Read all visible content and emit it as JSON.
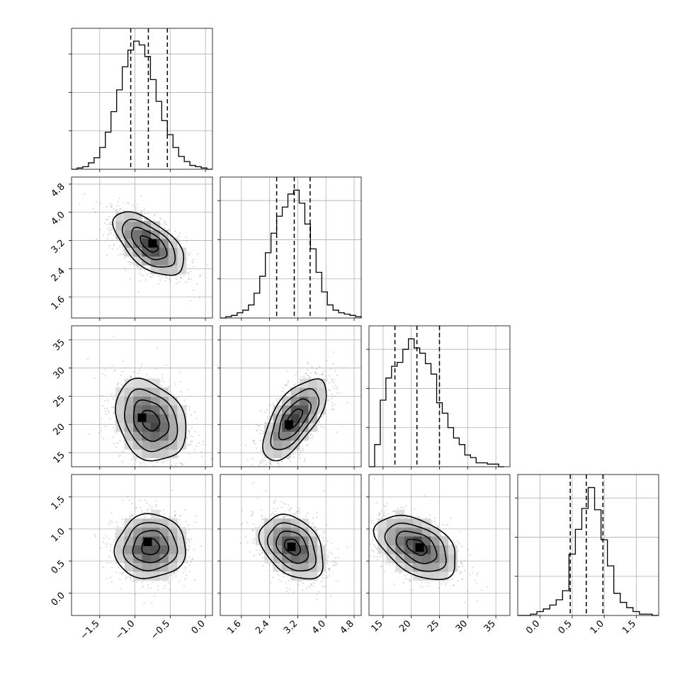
{
  "chart_data": {
    "type": "corner",
    "grid": true,
    "variables": [
      {
        "range": [
          -1.9,
          0.1
        ],
        "ticks": [
          -1.5,
          -1.0,
          -0.5,
          0.0
        ],
        "tick_labels": [
          "−1.5",
          "−1.0",
          "−0.5",
          "0.0"
        ],
        "quantiles": [
          -1.06,
          -0.81,
          -0.54
        ],
        "histogram": {
          "edges_start": -1.9,
          "edges_end": 0.1,
          "counts": [
            0,
            1,
            2,
            5,
            9,
            17,
            29,
            45,
            62,
            80,
            93,
            100,
            97,
            88,
            70,
            53,
            38,
            27,
            17,
            10,
            6,
            3,
            2,
            1,
            0
          ],
          "ymax": 110
        }
      },
      {
        "range": [
          1.0,
          5.0
        ],
        "ticks": [
          1.6,
          2.4,
          3.2,
          4.0,
          4.8
        ],
        "tick_labels": [
          "1.6",
          "2.4",
          "3.2",
          "4.0",
          "4.8"
        ],
        "quantiles": [
          2.6,
          3.1,
          3.55
        ],
        "histogram": {
          "edges_start": 1.0,
          "edges_end": 5.0,
          "counts": [
            0,
            1,
            2,
            4,
            6,
            10,
            19,
            32,
            50,
            65,
            78,
            85,
            95,
            98,
            88,
            72,
            53,
            35,
            20,
            10,
            6,
            4,
            3,
            2,
            1
          ],
          "ymax": 108
        }
      },
      {
        "range": [
          12.5,
          37.5
        ],
        "ticks": [
          15,
          20,
          25,
          30,
          35
        ],
        "tick_labels": [
          "15",
          "20",
          "25",
          "30",
          "35"
        ],
        "quantiles": [
          17.1,
          21.0,
          25.0
        ],
        "histogram": {
          "edges_start": 12.5,
          "edges_end": 36.5,
          "counts": [
            0,
            17,
            51,
            68,
            77,
            80,
            90,
            98,
            91,
            87,
            79,
            71,
            49,
            41,
            30,
            22,
            17,
            9,
            7,
            3,
            3,
            2,
            2,
            0
          ],
          "ymax": 108
        }
      },
      {
        "range": [
          -0.35,
          1.85
        ],
        "ticks": [
          0.0,
          0.5,
          1.0,
          1.5
        ],
        "tick_labels": [
          "0.0",
          "0.5",
          "1.0",
          "1.5"
        ],
        "quantiles": [
          0.47,
          0.72,
          0.98
        ],
        "histogram": {
          "edges_start": -0.35,
          "edges_end": 1.85,
          "counts": [
            0,
            0,
            1,
            3,
            5,
            8,
            12,
            19,
            47,
            66,
            82,
            98,
            81,
            58,
            38,
            17,
            10,
            6,
            3,
            1,
            1,
            0
          ],
          "ymax": 108
        }
      }
    ],
    "pairs": [
      {
        "row": 1,
        "col": 0,
        "center": [
          -0.8,
          3.1
        ],
        "sd": [
          0.25,
          0.45
        ],
        "corr": -0.6,
        "peak": [
          -0.75,
          3.12
        ]
      },
      {
        "row": 2,
        "col": 0,
        "center": [
          -0.78,
          20.7
        ],
        "sd": [
          0.25,
          3.6
        ],
        "corr": -0.25,
        "peak": [
          -0.9,
          21.2
        ]
      },
      {
        "row": 2,
        "col": 1,
        "center": [
          3.1,
          21.0
        ],
        "sd": [
          0.45,
          3.6
        ],
        "corr": 0.65,
        "peak": [
          2.95,
          20.0
        ]
      },
      {
        "row": 3,
        "col": 0,
        "center": [
          -0.78,
          0.72
        ],
        "sd": [
          0.25,
          0.25
        ],
        "corr": 0.05,
        "peak": [
          -0.82,
          0.8
        ]
      },
      {
        "row": 3,
        "col": 1,
        "center": [
          3.05,
          0.72
        ],
        "sd": [
          0.45,
          0.25
        ],
        "corr": -0.35,
        "peak": [
          3.02,
          0.72
        ]
      },
      {
        "row": 3,
        "col": 2,
        "center": [
          21.0,
          0.72
        ],
        "sd": [
          3.6,
          0.25
        ],
        "corr": -0.45,
        "peak": [
          21.5,
          0.71
        ]
      }
    ]
  }
}
